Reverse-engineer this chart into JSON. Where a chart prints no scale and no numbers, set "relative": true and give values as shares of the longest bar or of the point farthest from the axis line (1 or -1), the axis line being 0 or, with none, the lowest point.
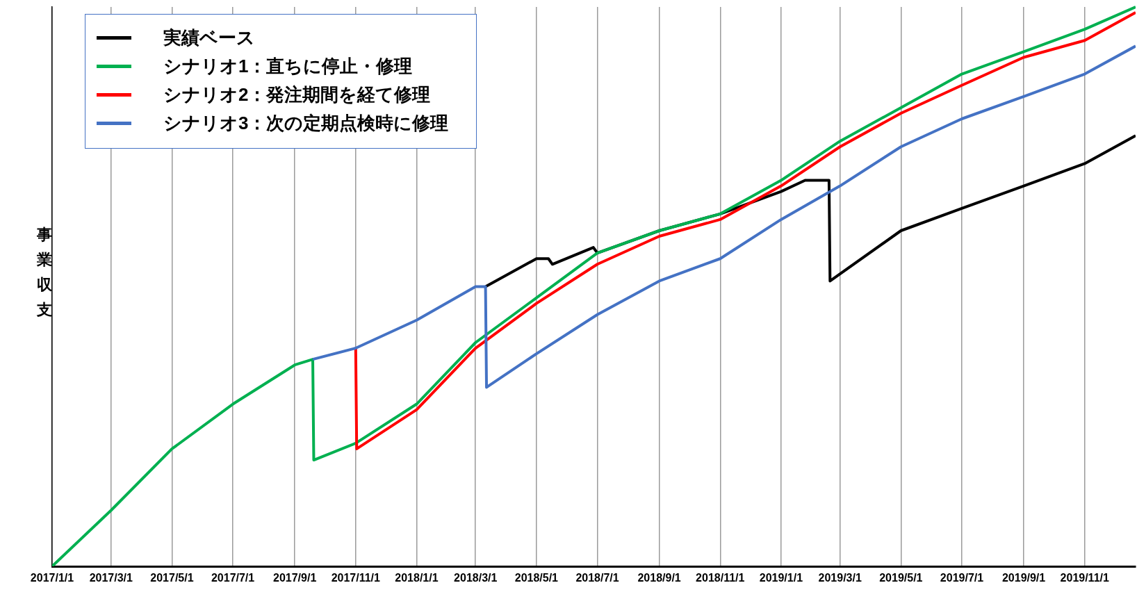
{
  "chart_data": {
    "type": "line",
    "ylabel": "事業収支",
    "relative": true,
    "grid": "x",
    "legend": "top left",
    "marker": "none",
    "line_style": "solid",
    "xlim": [
      "2017-01-01",
      "2019-12-22"
    ],
    "xticks": [
      {
        "value": "2017-01-01",
        "label": "2017/1/1"
      },
      {
        "value": "2017-03-01",
        "label": "2017/3/1"
      },
      {
        "value": "2017-05-01",
        "label": "2017/5/1"
      },
      {
        "value": "2017-07-01",
        "label": "2017/7/1"
      },
      {
        "value": "2017-09-01",
        "label": "2017/9/1"
      },
      {
        "value": "2017-11-01",
        "label": "2017/11/1"
      },
      {
        "value": "2018-01-01",
        "label": "2018/1/1"
      },
      {
        "value": "2018-03-01",
        "label": "2018/3/1"
      },
      {
        "value": "2018-05-01",
        "label": "2018/5/1"
      },
      {
        "value": "2018-07-01",
        "label": "2018/7/1"
      },
      {
        "value": "2018-09-01",
        "label": "2018/9/1"
      },
      {
        "value": "2018-11-01",
        "label": "2018/11/1"
      },
      {
        "value": "2019-01-01",
        "label": "2019/1/1"
      },
      {
        "value": "2019-03-01",
        "label": "2019/3/1"
      },
      {
        "value": "2019-05-01",
        "label": "2019/5/1"
      },
      {
        "value": "2019-07-01",
        "label": "2019/7/1"
      },
      {
        "value": "2019-09-01",
        "label": "2019/9/1"
      },
      {
        "value": "2019-11-01",
        "label": "2019/11/1"
      }
    ],
    "series": [
      {
        "name": "実績ベース",
        "color": "#000000",
        "x": [
          "2018-03-11",
          "2018-05-01",
          "2018-05-13",
          "2018-05-17",
          "2018-06-27",
          "2018-07-01",
          "2018-09-01",
          "2018-11-01",
          "2019-01-01",
          "2019-01-25",
          "2019-02-18",
          "2019-02-19",
          "2019-05-01",
          "2019-07-01",
          "2019-09-01",
          "2019-11-01",
          "2019-12-22"
        ],
        "values": [
          0.5,
          0.55,
          0.55,
          0.54,
          0.57,
          0.56,
          0.6,
          0.63,
          0.67,
          0.69,
          0.69,
          0.51,
          0.6,
          0.64,
          0.68,
          0.72,
          0.77
        ]
      },
      {
        "name": "シナリオ1：直ちに停止・修理",
        "color": "#00b050",
        "x": [
          "2017-01-01",
          "2017-03-01",
          "2017-05-01",
          "2017-07-01",
          "2017-09-01",
          "2017-09-19",
          "2017-09-20",
          "2017-11-01",
          "2018-01-01",
          "2018-03-01",
          "2018-05-01",
          "2018-07-01",
          "2018-09-01",
          "2018-11-01",
          "2019-01-01",
          "2019-03-01",
          "2019-05-01",
          "2019-07-01",
          "2019-09-01",
          "2019-11-01",
          "2019-12-22"
        ],
        "values": [
          0,
          0.1,
          0.21,
          0.29,
          0.36,
          0.37,
          0.19,
          0.22,
          0.29,
          0.4,
          0.48,
          0.56,
          0.6,
          0.63,
          0.69,
          0.76,
          0.82,
          0.88,
          0.92,
          0.96,
          1
        ]
      },
      {
        "name": "シナリオ2：発注期間を経て修理",
        "color": "#ff0000",
        "x": [
          "2017-11-01",
          "2017-11-02",
          "2018-01-01",
          "2018-03-01",
          "2018-05-01",
          "2018-07-01",
          "2018-09-01",
          "2018-11-01",
          "2019-01-01",
          "2019-03-01",
          "2019-05-01",
          "2019-07-01",
          "2019-09-01",
          "2019-11-01",
          "2019-12-22"
        ],
        "values": [
          0.39,
          0.21,
          0.28,
          0.39,
          0.47,
          0.54,
          0.59,
          0.62,
          0.68,
          0.75,
          0.81,
          0.86,
          0.91,
          0.94,
          0.99
        ]
      },
      {
        "name": "シナリオ3：次の定期点検時に修理",
        "color": "#4472c4",
        "x": [
          "2017-09-19",
          "2017-11-01",
          "2018-01-01",
          "2018-03-01",
          "2018-03-11",
          "2018-03-12",
          "2018-05-01",
          "2018-07-01",
          "2018-09-01",
          "2018-11-01",
          "2019-01-01",
          "2019-03-01",
          "2019-05-01",
          "2019-07-01",
          "2019-09-01",
          "2019-11-01",
          "2019-12-22"
        ],
        "values": [
          0.37,
          0.39,
          0.44,
          0.5,
          0.5,
          0.32,
          0.38,
          0.45,
          0.51,
          0.55,
          0.62,
          0.68,
          0.75,
          0.8,
          0.84,
          0.88,
          0.93
        ]
      }
    ]
  }
}
